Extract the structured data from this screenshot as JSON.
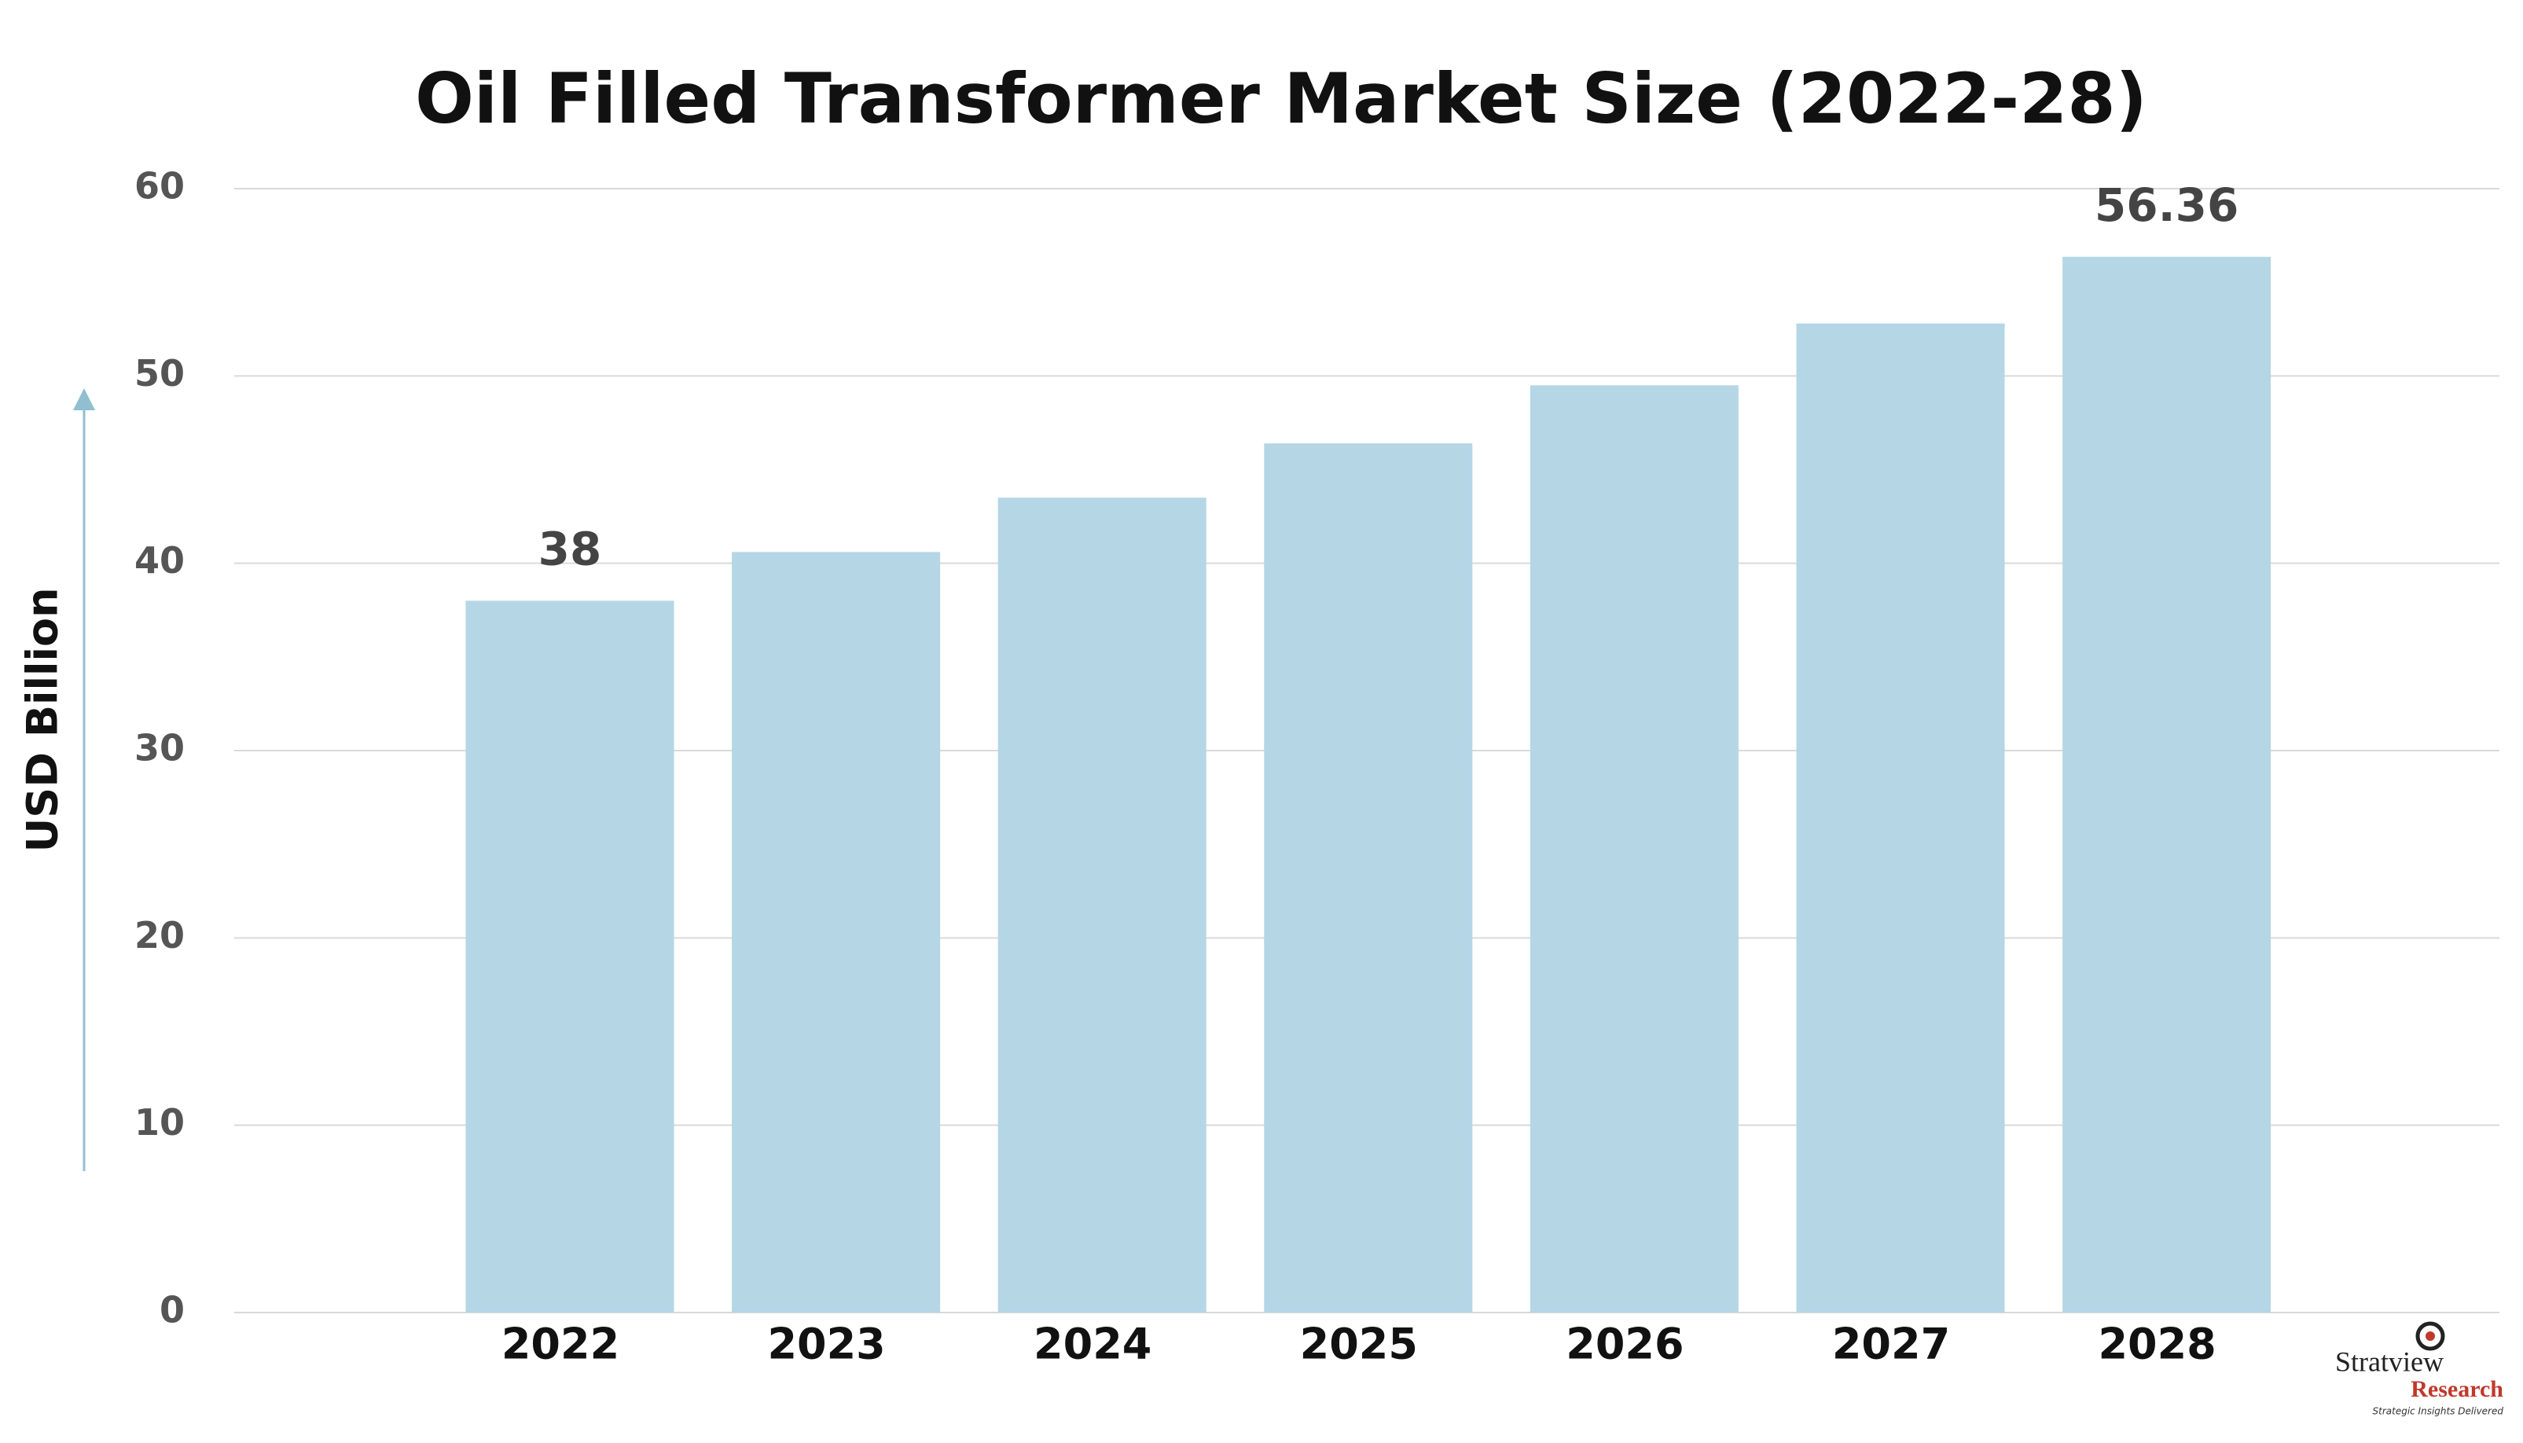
{
  "chart_data": {
    "type": "bar",
    "title": "Oil Filled Transformer Market Size (2022-28)",
    "y_label": "USD Billion",
    "categories": [
      "2022",
      "2023",
      "2024",
      "2025",
      "2026",
      "2027",
      "2028"
    ],
    "values": [
      38,
      40.6,
      43.5,
      46.4,
      49.5,
      52.8,
      56.36
    ],
    "value_labels": [
      "38",
      null,
      null,
      null,
      null,
      null,
      "56.36"
    ],
    "color": "#b5d6e5",
    "ylim": [
      0,
      60
    ],
    "yticks": [
      0,
      10,
      20,
      30,
      40,
      50,
      60
    ],
    "grid": true
  },
  "logo": {
    "name": "Stratview",
    "sub": "Research",
    "tagline": "Strategic Insights Delivered"
  }
}
